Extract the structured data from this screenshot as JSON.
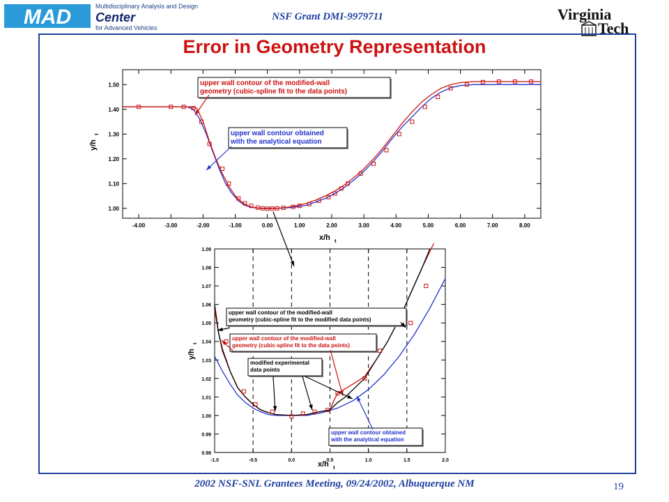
{
  "header": {
    "logo_mad": "MAD",
    "logo_line1": "Multidisciplinary Analysis and Design",
    "logo_center": "Center",
    "logo_line3": "for Advanced Vehicles",
    "grant": "NSF Grant DMI-9979711",
    "vt_line1": "Virginia",
    "vt_line2": "Tech"
  },
  "slide": {
    "title": "Error in Geometry Representation",
    "footer": "2002 NSF-SNL Grantees Meeting, 09/24/2002, Albuquerque NM",
    "page_number": "19"
  },
  "colors": {
    "red": "#cc1111",
    "blue": "#2233cc",
    "black": "#000000",
    "frame": "#1f3f9f"
  },
  "chart_data": [
    {
      "type": "line",
      "xlabel": "x/h",
      "xlabel_sub": "t",
      "ylabel": "y/h",
      "ylabel_sub": "t",
      "xlim": [
        -4.5,
        8.5
      ],
      "ylim": [
        0.96,
        1.56
      ],
      "xticks": [
        -4,
        -3,
        -2,
        -1,
        0,
        1,
        2,
        3,
        4,
        5,
        6,
        7,
        8
      ],
      "xtick_labels": [
        "-4.00",
        "-3.00",
        "-2.00",
        "-1.00",
        "0.00",
        "1.00",
        "2.00",
        "3.00",
        "4.00",
        "5.00",
        "6.00",
        "7.00",
        "8.00"
      ],
      "yticks": [
        1.0,
        1.1,
        1.2,
        1.3,
        1.4,
        1.5
      ],
      "ytick_labels": [
        "1.00",
        "1.10",
        "1.20",
        "1.30",
        "1.40",
        "1.50"
      ],
      "series": [
        {
          "color": "#2233cc",
          "points": [
            [
              -4.5,
              1.41
            ],
            [
              -2.5,
              1.41
            ],
            [
              -2.3,
              1.4
            ],
            [
              -2.1,
              1.36
            ],
            [
              -1.9,
              1.3
            ],
            [
              -1.7,
              1.23
            ],
            [
              -1.5,
              1.16
            ],
            [
              -1.3,
              1.1
            ],
            [
              -1.1,
              1.06
            ],
            [
              -0.9,
              1.03
            ],
            [
              -0.7,
              1.012
            ],
            [
              -0.5,
              1.004
            ],
            [
              -0.3,
              1.001
            ],
            [
              0.0,
              1.0
            ],
            [
              0.3,
              1.0
            ],
            [
              0.6,
              1.002
            ],
            [
              0.9,
              1.006
            ],
            [
              1.2,
              1.012
            ],
            [
              1.5,
              1.025
            ],
            [
              1.8,
              1.04
            ],
            [
              2.1,
              1.06
            ],
            [
              2.4,
              1.085
            ],
            [
              2.7,
              1.115
            ],
            [
              3.0,
              1.15
            ],
            [
              3.3,
              1.19
            ],
            [
              3.6,
              1.235
            ],
            [
              3.9,
              1.285
            ],
            [
              4.2,
              1.33
            ],
            [
              4.5,
              1.37
            ],
            [
              4.8,
              1.41
            ],
            [
              5.1,
              1.445
            ],
            [
              5.4,
              1.47
            ],
            [
              5.7,
              1.487
            ],
            [
              6.0,
              1.496
            ],
            [
              6.4,
              1.5
            ],
            [
              8.5,
              1.5
            ]
          ]
        },
        {
          "color": "#cc1111",
          "points": [
            [
              -4.5,
              1.41
            ],
            [
              -2.4,
              1.41
            ],
            [
              -2.2,
              1.405
            ],
            [
              -2.0,
              1.35
            ],
            [
              -1.8,
              1.27
            ],
            [
              -1.6,
              1.2
            ],
            [
              -1.4,
              1.14
            ],
            [
              -1.2,
              1.09
            ],
            [
              -1.0,
              1.05
            ],
            [
              -0.8,
              1.025
            ],
            [
              -0.6,
              1.01
            ],
            [
              -0.4,
              1.003
            ],
            [
              -0.2,
              1.0
            ],
            [
              0.0,
              0.999
            ],
            [
              0.3,
              1.0
            ],
            [
              0.6,
              1.004
            ],
            [
              0.9,
              1.01
            ],
            [
              1.2,
              1.02
            ],
            [
              1.5,
              1.033
            ],
            [
              1.8,
              1.05
            ],
            [
              2.1,
              1.07
            ],
            [
              2.4,
              1.095
            ],
            [
              2.7,
              1.125
            ],
            [
              3.0,
              1.16
            ],
            [
              3.3,
              1.2
            ],
            [
              3.6,
              1.245
            ],
            [
              3.9,
              1.295
            ],
            [
              4.2,
              1.345
            ],
            [
              4.5,
              1.39
            ],
            [
              4.8,
              1.43
            ],
            [
              5.1,
              1.46
            ],
            [
              5.4,
              1.485
            ],
            [
              5.7,
              1.5
            ],
            [
              6.0,
              1.508
            ],
            [
              6.4,
              1.512
            ],
            [
              8.5,
              1.512
            ]
          ]
        }
      ],
      "markers": [
        [
          -4.0,
          1.41
        ],
        [
          -3.0,
          1.41
        ],
        [
          -2.6,
          1.41
        ],
        [
          -2.3,
          1.405
        ],
        [
          -2.05,
          1.35
        ],
        [
          -1.8,
          1.26
        ],
        [
          -1.4,
          1.16
        ],
        [
          -1.2,
          1.1
        ],
        [
          -0.9,
          1.04
        ],
        [
          -0.7,
          1.02
        ],
        [
          -0.5,
          1.01
        ],
        [
          -0.3,
          1.003
        ],
        [
          -0.15,
          1.0
        ],
        [
          0.0,
          0.999
        ],
        [
          0.15,
          0.999
        ],
        [
          0.3,
          1.0
        ],
        [
          0.5,
          1.002
        ],
        [
          0.8,
          1.006
        ],
        [
          1.0,
          1.01
        ],
        [
          1.3,
          1.017
        ],
        [
          1.6,
          1.03
        ],
        [
          1.9,
          1.045
        ],
        [
          2.1,
          1.06
        ],
        [
          2.3,
          1.08
        ],
        [
          2.5,
          1.1
        ],
        [
          2.9,
          1.14
        ],
        [
          3.3,
          1.18
        ],
        [
          3.7,
          1.235
        ],
        [
          4.1,
          1.3
        ],
        [
          4.5,
          1.35
        ],
        [
          4.9,
          1.41
        ],
        [
          5.3,
          1.45
        ],
        [
          5.7,
          1.485
        ],
        [
          6.2,
          1.5
        ],
        [
          6.7,
          1.51
        ],
        [
          7.2,
          1.512
        ],
        [
          7.7,
          1.512
        ],
        [
          8.2,
          1.512
        ]
      ]
    },
    {
      "type": "line",
      "xlabel": "x/h",
      "xlabel_sub": "t",
      "ylabel": "y/h",
      "ylabel_sub": "t",
      "xlim": [
        -1.0,
        2.0
      ],
      "ylim": [
        0.98,
        1.09
      ],
      "xticks": [
        -1.0,
        -0.5,
        0.0,
        0.5,
        1.0,
        1.5,
        2.0
      ],
      "xtick_labels": [
        "-1.0",
        "-0.5",
        "0.0",
        "0.5",
        "1.0",
        "1.5",
        "2.0"
      ],
      "yticks": [
        0.98,
        0.99,
        1.0,
        1.01,
        1.02,
        1.03,
        1.04,
        1.05,
        1.06,
        1.07,
        1.08,
        1.09
      ],
      "ytick_labels": [
        "0.98",
        "0.99",
        "1.00",
        "1.01",
        "1.02",
        "1.03",
        "1.04",
        "1.05",
        "1.06",
        "1.07",
        "1.08",
        "1.09"
      ],
      "dashed_verticals": [
        -0.5,
        0.0,
        0.5,
        1.0,
        1.5
      ],
      "series": [
        {
          "color": "#2233cc",
          "points": [
            [
              -1.0,
              1.032
            ],
            [
              -0.9,
              1.024
            ],
            [
              -0.8,
              1.017
            ],
            [
              -0.7,
              1.011
            ],
            [
              -0.6,
              1.007
            ],
            [
              -0.5,
              1.004
            ],
            [
              -0.4,
              1.002
            ],
            [
              -0.3,
              1.0005
            ],
            [
              -0.2,
              1.0
            ],
            [
              0.0,
              1.0
            ],
            [
              0.2,
              1.0
            ],
            [
              0.4,
              1.0015
            ],
            [
              0.6,
              1.004
            ],
            [
              0.8,
              1.008
            ],
            [
              1.0,
              1.014
            ],
            [
              1.2,
              1.022
            ],
            [
              1.4,
              1.032
            ],
            [
              1.6,
              1.044
            ],
            [
              1.8,
              1.058
            ],
            [
              2.0,
              1.074
            ]
          ]
        },
        {
          "color": "#cc1111",
          "points": [
            [
              -1.0,
              1.057
            ],
            [
              -0.95,
              1.045
            ],
            [
              -0.9,
              1.035
            ],
            [
              -0.8,
              1.024
            ],
            [
              -0.7,
              1.015
            ],
            [
              -0.6,
              1.01
            ],
            [
              -0.5,
              1.006
            ],
            [
              -0.4,
              1.003
            ],
            [
              -0.3,
              1.0015
            ],
            [
              -0.2,
              1.0005
            ],
            [
              0.0,
              1.0
            ],
            [
              0.2,
              1.0005
            ],
            [
              0.3,
              1.0015
            ],
            [
              0.5,
              1.003
            ],
            [
              0.55,
              1.008
            ],
            [
              0.6,
              1.012
            ],
            [
              0.7,
              1.0145
            ],
            [
              0.8,
              1.017
            ],
            [
              0.95,
              1.021
            ],
            [
              1.1,
              1.03
            ],
            [
              1.25,
              1.04
            ],
            [
              1.4,
              1.052
            ],
            [
              1.55,
              1.066
            ],
            [
              1.7,
              1.08
            ],
            [
              1.85,
              1.093
            ]
          ]
        },
        {
          "color": "#000000",
          "points": [
            [
              -1.0,
              1.06
            ],
            [
              -0.95,
              1.045
            ],
            [
              -0.9,
              1.036
            ],
            [
              -0.8,
              1.024
            ],
            [
              -0.7,
              1.015
            ],
            [
              -0.6,
              1.01
            ],
            [
              -0.5,
              1.006
            ],
            [
              -0.4,
              1.003
            ],
            [
              -0.3,
              1.0015
            ],
            [
              -0.2,
              1.0005
            ],
            [
              0.0,
              1.0
            ],
            [
              0.2,
              1.0005
            ],
            [
              0.3,
              1.0015
            ],
            [
              0.5,
              1.003
            ],
            [
              0.6,
              1.007
            ],
            [
              0.7,
              1.01
            ],
            [
              0.8,
              1.014
            ],
            [
              0.95,
              1.02
            ],
            [
              1.1,
              1.03
            ],
            [
              1.25,
              1.04
            ],
            [
              1.4,
              1.052
            ],
            [
              1.55,
              1.066
            ],
            [
              1.7,
              1.08
            ],
            [
              1.8,
              1.09
            ]
          ]
        }
      ],
      "markers": [
        [
          -0.85,
          1.04
        ],
        [
          -0.62,
          1.013
        ],
        [
          -0.47,
          1.006
        ],
        [
          -0.25,
          1.002
        ],
        [
          0.0,
          0.9995
        ],
        [
          0.15,
          1.001
        ],
        [
          0.3,
          1.002
        ],
        [
          0.47,
          1.003
        ],
        [
          0.6,
          1.012
        ],
        [
          0.95,
          1.02
        ],
        [
          1.15,
          1.035
        ],
        [
          1.55,
          1.05
        ],
        [
          1.75,
          1.07
        ]
      ]
    }
  ],
  "annotations": {
    "top_red": [
      "upper wall contour of the modified-wall",
      "geometry (cubic-spline fit to the data points)"
    ],
    "top_blue": [
      "upper wall contour obtained",
      "with the analytical equation"
    ],
    "bottom_black": [
      "upper wall contour of the modified-wall",
      "geometry (cubic-spline fit to the modified data points)"
    ],
    "bottom_red": [
      "upper wall contour of the modified-wall",
      "geometry (cubic-spline fit to the data points)"
    ],
    "bottom_mod": [
      "modified experimental",
      "data points"
    ],
    "bottom_blue": [
      "upper wall contour obtained",
      "with the analytical equation"
    ]
  }
}
